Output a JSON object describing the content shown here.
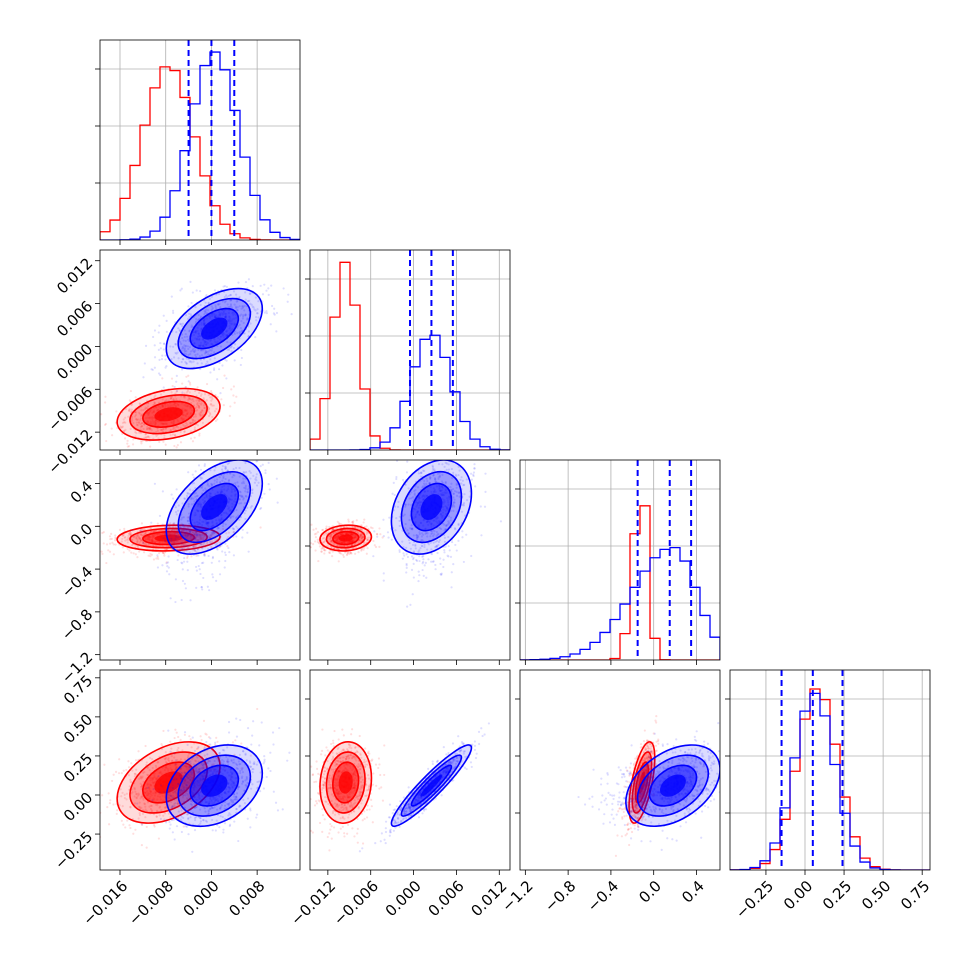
{
  "chart_data": {
    "type": "corner",
    "parameters": 4,
    "series": [
      {
        "color": "#ff0000",
        "means": [
          -0.0075,
          -0.0095,
          -0.11,
          0.08
        ],
        "sds": [
          0.0045,
          0.0018,
          0.06,
          0.13
        ],
        "correlations": [
          [
            1,
            0.3,
            0.1,
            0.4
          ],
          [
            0.3,
            1,
            0.1,
            0.1
          ],
          [
            0.1,
            0.1,
            1,
            0.6
          ],
          [
            0.4,
            0.1,
            0.6,
            1
          ]
        ],
        "hist_peak_fraction": [
          0.93,
          1.0,
          0.92,
          0.97
        ],
        "skew": [
          0,
          0,
          -0.6,
          0
        ]
      },
      {
        "color": "#0000ff",
        "means": [
          0.0005,
          0.0025,
          0.18,
          0.06
        ],
        "sds": [
          0.0042,
          0.0028,
          0.22,
          0.13
        ],
        "correlations": [
          [
            1,
            0.5,
            0.5,
            0.3
          ],
          [
            0.5,
            1,
            0.3,
            0.93
          ],
          [
            0.5,
            0.3,
            1,
            0.4
          ],
          [
            0.3,
            0.93,
            0.4,
            1
          ]
        ],
        "hist_peak_fraction": [
          1.0,
          0.62,
          0.6,
          0.94
        ],
        "skew": [
          0,
          0,
          -1.2,
          0
        ]
      }
    ],
    "quantile_lines": {
      "color": "#0000ff",
      "style": "dashed",
      "values": [
        [
          -0.004,
          0.0,
          0.004
        ],
        [
          -0.0005,
          0.0025,
          0.0055
        ],
        [
          -0.15,
          0.15,
          0.35
        ],
        [
          -0.15,
          0.05,
          0.24
        ]
      ]
    },
    "ranges": [
      [
        -0.0195,
        0.0155
      ],
      [
        -0.0145,
        0.0135
      ],
      [
        -1.25,
        0.62
      ],
      [
        -0.48,
        0.8
      ]
    ],
    "tick_labels": [
      [
        "−0.016",
        "−0.008",
        "0.000",
        "0.008"
      ],
      [
        "−0.012",
        "−0.006",
        "0.000",
        "0.006",
        "0.012"
      ],
      [
        "−1.2",
        "−0.8",
        "−0.4",
        "0.0",
        "0.4"
      ],
      [
        "−0.25",
        "0.00",
        "0.25",
        "0.50",
        "0.75"
      ]
    ],
    "tick_values": [
      [
        -0.016,
        -0.008,
        0.0,
        0.008
      ],
      [
        -0.012,
        -0.006,
        0.0,
        0.006,
        0.012
      ],
      [
        -1.2,
        -0.8,
        -0.4,
        0.0,
        0.4
      ],
      [
        -0.25,
        0.0,
        0.25,
        0.5,
        0.75
      ]
    ],
    "y_tick_params": [
      1,
      2,
      3
    ],
    "grid": true,
    "density_levels": [
      0.86,
      0.4,
      0.12
    ]
  }
}
